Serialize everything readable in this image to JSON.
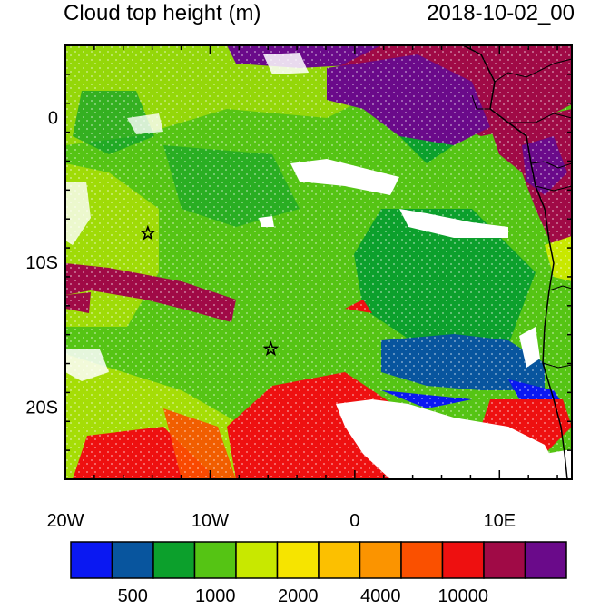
{
  "title": "Cloud top height (m)",
  "datetime": "2018-10-02_00",
  "axes": {
    "x_ticks": [
      {
        "value": -20,
        "label": "20W"
      },
      {
        "value": -10,
        "label": "10W"
      },
      {
        "value": 0,
        "label": "0"
      },
      {
        "value": 10,
        "label": "10E"
      }
    ],
    "y_ticks": [
      {
        "value": 0,
        "label": "0"
      },
      {
        "value": -10,
        "label": "10S"
      },
      {
        "value": -20,
        "label": "20S"
      }
    ],
    "lon_range": [
      -20,
      15
    ],
    "lat_range": [
      -25,
      5
    ]
  },
  "colorbar": {
    "colors": [
      "#0a18f2",
      "#08559e",
      "#0ca02c",
      "#55c414",
      "#c8e800",
      "#f6e400",
      "#fcc000",
      "#fb9400",
      "#fa5000",
      "#ee1010",
      "#a00a46",
      "#6a0a8a"
    ],
    "labels": [
      {
        "boundary": 1,
        "text": "500"
      },
      {
        "boundary": 3,
        "text": "1000"
      },
      {
        "boundary": 5,
        "text": "2000"
      },
      {
        "boundary": 7,
        "text": "4000"
      },
      {
        "boundary": 9,
        "text": "10000"
      }
    ]
  },
  "markers": [
    {
      "name": "star",
      "lon": -14.3,
      "lat": -8.0
    },
    {
      "name": "star",
      "lon": -5.8,
      "lat": -16.0
    }
  ]
}
